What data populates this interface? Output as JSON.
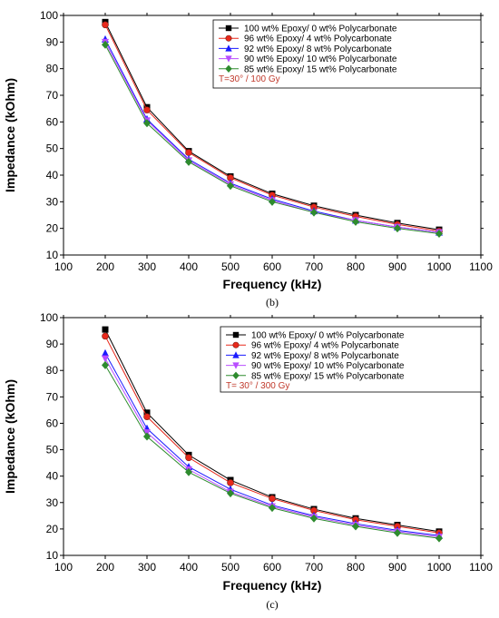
{
  "chart_data": [
    {
      "type": "line",
      "panel_label": "(b)",
      "xlabel": "Frequency (kHz)",
      "ylabel": "Impedance (kOhm)",
      "xlim": [
        100,
        1100
      ],
      "ylim": [
        10,
        100
      ],
      "xticks": [
        100,
        200,
        300,
        400,
        500,
        600,
        700,
        800,
        900,
        1000,
        1100
      ],
      "yticks": [
        10,
        20,
        30,
        40,
        50,
        60,
        70,
        80,
        90,
        100
      ],
      "legend_position": "top-right",
      "annotation": "T=30° / 100 Gy",
      "x": [
        200,
        300,
        400,
        500,
        600,
        700,
        800,
        900,
        1000
      ],
      "series": [
        {
          "name": "100 wt% Epoxy/ 0 wt% Polycarbonate",
          "color": "#000000",
          "marker": "square",
          "values": [
            97.5,
            65.5,
            49.0,
            39.5,
            33.0,
            28.5,
            25.0,
            22.0,
            19.5
          ]
        },
        {
          "name": "96 wt% Epoxy/ 4 wt% Polycarbonate",
          "color": "#e8291c",
          "marker": "circle",
          "values": [
            96.5,
            64.5,
            48.5,
            39.0,
            32.5,
            28.0,
            24.5,
            21.5,
            19.0
          ]
        },
        {
          "name": "92 wt% Epoxy/ 8 wt% Polycarbonate",
          "color": "#1a1aff",
          "marker": "triangle-up",
          "values": [
            91.0,
            61.0,
            46.0,
            37.0,
            31.0,
            26.5,
            23.0,
            20.5,
            18.5
          ]
        },
        {
          "name": "90 wt% Epoxy/ 10 wt% Polycarbonate",
          "color": "#b84dff",
          "marker": "triangle-down",
          "values": [
            90.0,
            60.5,
            45.5,
            36.5,
            30.5,
            26.0,
            23.0,
            20.5,
            18.5
          ]
        },
        {
          "name": "85 wt% Epoxy/ 15 wt% Polycarbonate",
          "color": "#2e8b2e",
          "marker": "diamond",
          "values": [
            89.0,
            59.5,
            45.0,
            36.0,
            30.0,
            26.0,
            22.5,
            20.0,
            18.0
          ]
        }
      ]
    },
    {
      "type": "line",
      "panel_label": "(c)",
      "xlabel": "Frequency (kHz)",
      "ylabel": "Impedance (kOhm)",
      "xlim": [
        100,
        1100
      ],
      "ylim": [
        10,
        100
      ],
      "xticks": [
        100,
        200,
        300,
        400,
        500,
        600,
        700,
        800,
        900,
        1000,
        1100
      ],
      "yticks": [
        10,
        20,
        30,
        40,
        50,
        60,
        70,
        80,
        90,
        100
      ],
      "legend_position": "top-right",
      "annotation": "T= 30° / 300 Gy",
      "x": [
        200,
        300,
        400,
        500,
        600,
        700,
        800,
        900,
        1000
      ],
      "series": [
        {
          "name": "100 wt% Epoxy/ 0 wt% Polycarbonate",
          "color": "#000000",
          "marker": "square",
          "values": [
            95.5,
            64.0,
            48.0,
            38.5,
            32.0,
            27.5,
            24.0,
            21.5,
            19.0
          ]
        },
        {
          "name": "96 wt% Epoxy/ 4 wt% Polycarbonate",
          "color": "#e8291c",
          "marker": "circle",
          "values": [
            93.0,
            62.5,
            47.0,
            37.5,
            31.5,
            27.0,
            23.5,
            21.0,
            18.5
          ]
        },
        {
          "name": "92 wt% Epoxy/ 8 wt% Polycarbonate",
          "color": "#1a1aff",
          "marker": "triangle-up",
          "values": [
            86.5,
            58.0,
            43.5,
            35.0,
            29.0,
            25.0,
            22.0,
            19.5,
            17.5
          ]
        },
        {
          "name": "90 wt% Epoxy/ 10 wt% Polycarbonate",
          "color": "#b84dff",
          "marker": "triangle-down",
          "values": [
            84.5,
            56.5,
            42.5,
            34.0,
            28.5,
            24.5,
            21.5,
            19.0,
            17.0
          ]
        },
        {
          "name": "85 wt% Epoxy/ 15 wt% Polycarbonate",
          "color": "#2e8b2e",
          "marker": "diamond",
          "values": [
            82.0,
            55.0,
            41.5,
            33.5,
            28.0,
            24.0,
            21.0,
            18.5,
            16.5
          ]
        }
      ]
    }
  ]
}
